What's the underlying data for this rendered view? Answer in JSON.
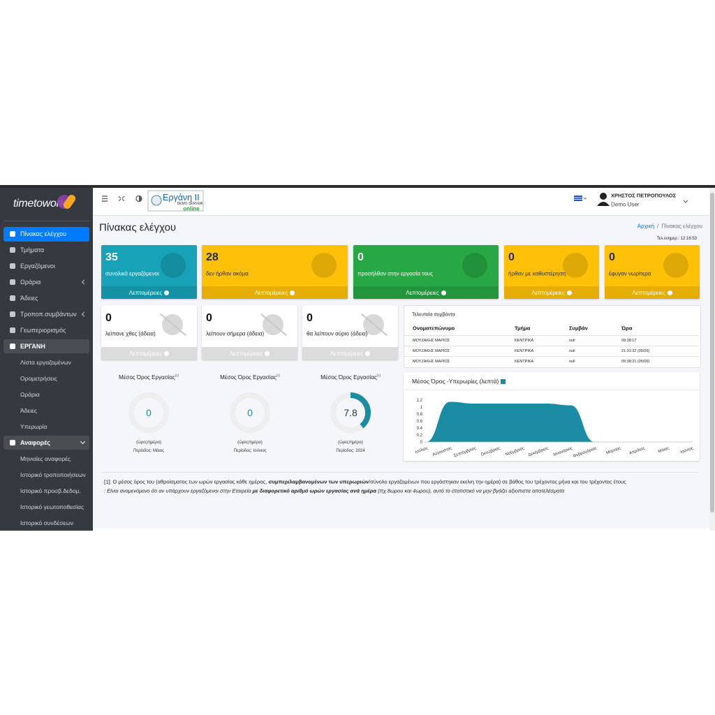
{
  "brand": "timetowork",
  "menu": [
    "Πίνακας ελέγχου",
    "Τμήματα",
    "Εργαζόμενοι",
    "Ωράρια",
    "Άδειες",
    "Τροποπ.συμβάντων",
    "Γεωπεριορισμός"
  ],
  "ergani": {
    "label": "ΕΡΓΑΝΗ",
    "items": [
      "Λίστα εργαζομένων",
      "Ορομετρήσεις",
      "Ωράρια",
      "Άδειες",
      "Υπερωρία"
    ]
  },
  "reports": {
    "label": "Αναφορές",
    "items": [
      "Μηνιαίες αναφορές",
      "Ιστορικό τροποποιήσεων",
      "Ιστορικό προσβ.δεδομ.",
      "Ιστορικό γεωτοποθεσίας",
      "Ιστορικό συνδέσεων"
    ]
  },
  "header": {
    "logo_title": "Εργάνη II",
    "logo_server": "DEMO SERVER",
    "logo_status": "online",
    "user_name": "ΧΡΗΣΤΟΣ ΠΕΤΡΟΠΟΥΛΟΣ",
    "user_role": "Demo User"
  },
  "page": {
    "title": "Πίνακας ελέγχου",
    "breadcrumb": [
      "Αρχική",
      "/",
      "Πίνακας ελέγχου"
    ],
    "last_update": "Τελ.ενημερ.: 12:16:53"
  },
  "details": "Λεπτομέρειες",
  "stats": [
    {
      "value": 35,
      "label": "συνολικά εργαζόμενοι"
    },
    {
      "value": 28,
      "label": "δεν ήρθαν ακόμα"
    },
    {
      "value": 0,
      "label": "προσήλθαν στην εργασία τους"
    },
    {
      "value": 0,
      "label": "ήρθαν με καθυστέρηση"
    },
    {
      "value": 0,
      "label": "έφυγαν νωρίτερα"
    }
  ],
  "absences": [
    {
      "value": 0,
      "label": "λείπανε χθες (άδεια)"
    },
    {
      "value": 0,
      "label": "λείπουν σήμερα (άδεια)"
    },
    {
      "value": 0,
      "label": "θα λείπουν αύριο (άδεια)"
    }
  ],
  "events": {
    "title": "Τελευταία συμβάντα",
    "columns": [
      "Ονοματεπώνυμο",
      "Τμήμα",
      "Συμβάν",
      "Ώρα"
    ],
    "rows": [
      [
        "ΜΟΥΖΑΚΗΣ ΜΑΡΙΟΣ",
        "ΚΕΝΤΡΙΚΑ",
        "null",
        "09:38:17"
      ],
      [
        "ΜΟΥΖΑΚΗΣ ΜΑΡΙΟΣ",
        "ΚΕΝΤΡΙΚΑ",
        "null",
        "21:31:32 (05/06)"
      ],
      [
        "ΜΟΥΖΑΚΗΣ ΜΑΡΙΟΣ",
        "ΚΕΝΤΡΙΚΑ",
        "null",
        "09:38:21 (05/06)"
      ]
    ]
  },
  "gauges": {
    "ylim": [
      0,
      20
    ],
    "items": [
      {
        "title": "Μέσος Όρος Εργασίας",
        "note": "[1]",
        "value": 0,
        "unit": "(ώρες/ημέρα)",
        "period": "Περίοδος: Μάιος"
      },
      {
        "title": "Μέσος Όρος Εργασίας",
        "note": "[1]",
        "value": 0,
        "unit": "(ώρες/ημέρα)",
        "period": "Περίοδος: Ιούνιος"
      },
      {
        "title": "Μέσος Όρος Εργασίας",
        "note": "[1]",
        "value": 7.8,
        "unit": "(ώρες/ημέρα)",
        "period": "Περίοδος: 2024"
      }
    ]
  },
  "chart_data": {
    "type": "area",
    "categories": [
      "Ιούλιος",
      "Αύγουστος",
      "Σεπτέμβριος",
      "Οκτώβριος",
      "Νοέμβριος",
      "Δεκέμβριος",
      "Ιανουάριος",
      "Φεβρουάριος",
      "Μάρτιος",
      "Απρίλιος",
      "Μάιος",
      "Ιούνιος"
    ],
    "series": [
      {
        "name": "Μέσος Όρος -Υπερωρίες (λεπτά)",
        "color": "#1b8ca3",
        "values": [
          0,
          1.15,
          1.1,
          1.1,
          1.1,
          1.1,
          1.05,
          0,
          0,
          0,
          0,
          0
        ]
      }
    ],
    "ylim": [
      0,
      1.2
    ],
    "yticks": [
      0,
      0.2,
      0.4,
      0.6,
      0.8,
      1,
      1.2
    ]
  },
  "footnote": {
    "line1": [
      "[1]: Ο μέσος όρος του (αθροίσματος των ωρών εργασίας κάθε ημέρας, ",
      "συμπεριλαμβανομένων των υπερωριών",
      "/σύνολο εργαζομένων που εργάστηκαν εκείνη την ημέρα) σε βάθος του τρέχοντος μήνα και του τρέχοντος έτους"
    ],
    "line2": [
      ": Είναι αναμενόμενο ότι αν υπάρχουν εργαζόμενοι στην Εταιρεία ",
      "με διαφορετικό αριθμό ωρών εργασίας ανά ημέρα",
      " (πχ 8ωρου και 4ωρου), αυτό το στατιστικό να μην βγάζει αξιοπιστα αποτελέσματα"
    ]
  }
}
